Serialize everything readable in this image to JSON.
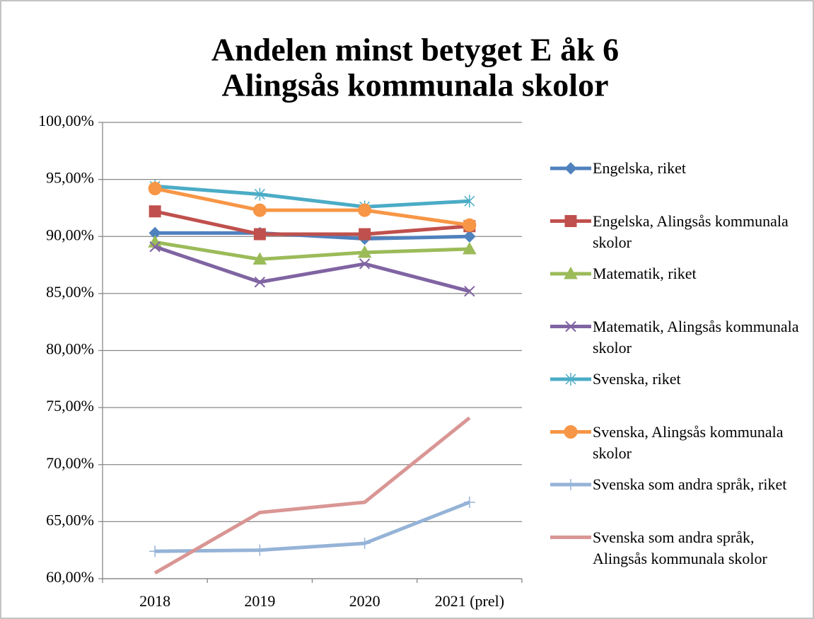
{
  "chart_data": {
    "type": "line",
    "title": [
      "Andelen minst betyget E åk 6",
      "Alingsås kommunala skolor"
    ],
    "categories": [
      "2018",
      "2019",
      "2020",
      "2021 (prel)"
    ],
    "ylim": [
      60,
      100
    ],
    "yticks": [
      {
        "value": 60,
        "label": "60,00%"
      },
      {
        "value": 65,
        "label": "65,00%"
      },
      {
        "value": 70,
        "label": "70,00%"
      },
      {
        "value": 75,
        "label": "75,00%"
      },
      {
        "value": 80,
        "label": "80,00%"
      },
      {
        "value": 85,
        "label": "85,00%"
      },
      {
        "value": 90,
        "label": "90,00%"
      },
      {
        "value": 95,
        "label": "95,00%"
      },
      {
        "value": 100,
        "label": "100,00%"
      }
    ],
    "grid": true,
    "legend": "right",
    "series": [
      {
        "name": "Engelska, riket",
        "color": "#4f81bd",
        "marker": "diamond",
        "values": [
          90.3,
          90.3,
          89.8,
          90.0
        ]
      },
      {
        "name": "Engelska, Alingsås kommunala skolor",
        "color": "#c0504d",
        "marker": "square",
        "values": [
          92.2,
          90.2,
          90.2,
          90.9
        ]
      },
      {
        "name": "Matematik, riket",
        "color": "#9bbb59",
        "marker": "triangle",
        "values": [
          89.5,
          88.0,
          88.6,
          88.9
        ]
      },
      {
        "name": "Matematik, Alingsås kommunala skolor",
        "color": "#8064a2",
        "marker": "x",
        "values": [
          89.1,
          86.0,
          87.6,
          85.2
        ]
      },
      {
        "name": "Svenska, riket",
        "color": "#4bacc6",
        "marker": "star",
        "values": [
          94.4,
          93.7,
          92.6,
          93.1
        ]
      },
      {
        "name": "Svenska, Alingsås kommunala skolor",
        "color": "#f79646",
        "marker": "circle",
        "values": [
          94.2,
          92.3,
          92.3,
          91.0
        ]
      },
      {
        "name": "Svenska som andra språk, riket",
        "color": "#95b3d7",
        "marker": "plus",
        "values": [
          62.4,
          62.5,
          63.1,
          66.7
        ]
      },
      {
        "name": "Svenska som andra språk, Alingsås kommunala skolor",
        "color": "#d99694",
        "marker": "none",
        "values": [
          60.5,
          65.8,
          66.7,
          74.1
        ]
      }
    ]
  }
}
